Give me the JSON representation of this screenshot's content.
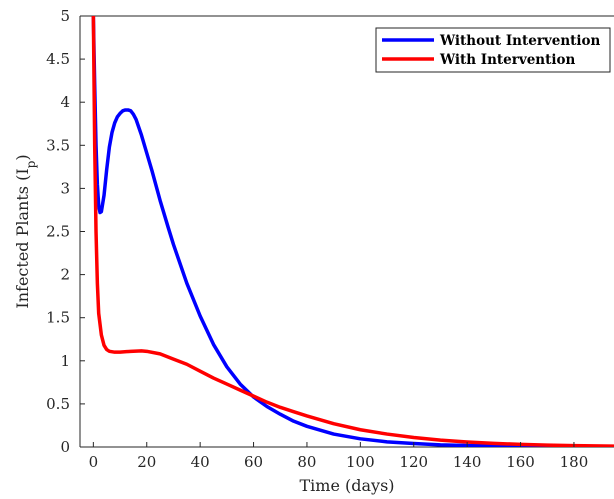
{
  "chart_data": {
    "type": "line",
    "xlabel": "Time (days)",
    "ylabel_main": "Infected Plants (I",
    "ylabel_sub": "p",
    "ylabel_close": ")",
    "xlim": [
      -5,
      195
    ],
    "ylim": [
      0,
      5
    ],
    "x_ticks": [
      0,
      20,
      40,
      60,
      80,
      100,
      120,
      140,
      160,
      180
    ],
    "y_ticks": [
      0,
      0.5,
      1,
      1.5,
      2,
      2.5,
      3,
      3.5,
      4,
      4.5,
      5
    ],
    "grid": false,
    "legend_position": "top-right",
    "series": [
      {
        "name": "Without Intervention",
        "color": "#0000ff",
        "points": [
          [
            0,
            5.0
          ],
          [
            0.5,
            4.2
          ],
          [
            1,
            3.5
          ],
          [
            1.5,
            3.05
          ],
          [
            2,
            2.8
          ],
          [
            2.5,
            2.72
          ],
          [
            3,
            2.73
          ],
          [
            4,
            2.92
          ],
          [
            5,
            3.22
          ],
          [
            6,
            3.48
          ],
          [
            7,
            3.65
          ],
          [
            8,
            3.76
          ],
          [
            9,
            3.83
          ],
          [
            10,
            3.87
          ],
          [
            11,
            3.9
          ],
          [
            12,
            3.91
          ],
          [
            13,
            3.91
          ],
          [
            14,
            3.9
          ],
          [
            15,
            3.86
          ],
          [
            16,
            3.8
          ],
          [
            18,
            3.62
          ],
          [
            20,
            3.41
          ],
          [
            22,
            3.2
          ],
          [
            25,
            2.86
          ],
          [
            28,
            2.55
          ],
          [
            30,
            2.35
          ],
          [
            35,
            1.9
          ],
          [
            40,
            1.52
          ],
          [
            45,
            1.19
          ],
          [
            50,
            0.93
          ],
          [
            55,
            0.73
          ],
          [
            60,
            0.58
          ],
          [
            65,
            0.47
          ],
          [
            70,
            0.38
          ],
          [
            75,
            0.3
          ],
          [
            80,
            0.24
          ],
          [
            90,
            0.15
          ],
          [
            100,
            0.095
          ],
          [
            110,
            0.06
          ],
          [
            120,
            0.04
          ],
          [
            130,
            0.025
          ],
          [
            140,
            0.017
          ],
          [
            150,
            0.011
          ],
          [
            160,
            0.007
          ],
          [
            170,
            0.005
          ],
          [
            180,
            0.003
          ],
          [
            195,
            0.002
          ]
        ]
      },
      {
        "name": "With Intervention",
        "color": "#ff0000",
        "points": [
          [
            0,
            5.0
          ],
          [
            0.5,
            3.5
          ],
          [
            1,
            2.5
          ],
          [
            1.5,
            1.9
          ],
          [
            2,
            1.55
          ],
          [
            3,
            1.3
          ],
          [
            4,
            1.18
          ],
          [
            5,
            1.13
          ],
          [
            6,
            1.11
          ],
          [
            8,
            1.1
          ],
          [
            10,
            1.1
          ],
          [
            14,
            1.11
          ],
          [
            18,
            1.115
          ],
          [
            20,
            1.11
          ],
          [
            25,
            1.08
          ],
          [
            30,
            1.02
          ],
          [
            35,
            0.96
          ],
          [
            40,
            0.88
          ],
          [
            45,
            0.8
          ],
          [
            50,
            0.73
          ],
          [
            55,
            0.66
          ],
          [
            60,
            0.59
          ],
          [
            65,
            0.52
          ],
          [
            70,
            0.46
          ],
          [
            75,
            0.41
          ],
          [
            80,
            0.36
          ],
          [
            90,
            0.27
          ],
          [
            100,
            0.2
          ],
          [
            110,
            0.15
          ],
          [
            120,
            0.11
          ],
          [
            130,
            0.08
          ],
          [
            140,
            0.058
          ],
          [
            150,
            0.042
          ],
          [
            160,
            0.03
          ],
          [
            170,
            0.022
          ],
          [
            180,
            0.016
          ],
          [
            195,
            0.01
          ]
        ]
      }
    ]
  }
}
